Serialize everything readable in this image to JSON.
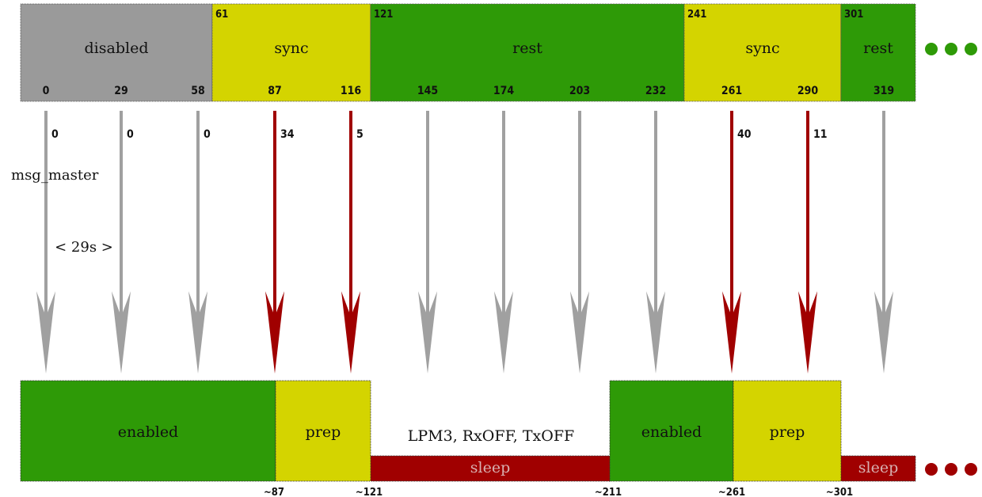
{
  "top_segments": [
    {
      "label": "disabled",
      "start_label": "",
      "color": "#9a9a9a"
    },
    {
      "label": "sync",
      "start_label": "61",
      "color": "#d4d400"
    },
    {
      "label": "rest",
      "start_label": "121",
      "color": "#2e9a07"
    },
    {
      "label": "sync",
      "start_label": "241",
      "color": "#d4d400"
    },
    {
      "label": "rest",
      "start_label": "301",
      "color": "#2e9a07"
    }
  ],
  "tick_labels": [
    "0",
    "29",
    "58",
    "87",
    "116",
    "145",
    "174",
    "203",
    "232",
    "261",
    "290",
    "319"
  ],
  "arrows": [
    {
      "value": "0",
      "color": "gray"
    },
    {
      "value": "0",
      "color": "gray"
    },
    {
      "value": "0",
      "color": "gray"
    },
    {
      "value": "34",
      "color": "red"
    },
    {
      "value": "5",
      "color": "red"
    },
    {
      "value": "",
      "color": "gray"
    },
    {
      "value": "",
      "color": "gray"
    },
    {
      "value": "",
      "color": "gray"
    },
    {
      "value": "",
      "color": "gray"
    },
    {
      "value": "40",
      "color": "red"
    },
    {
      "value": "11",
      "color": "red"
    },
    {
      "value": "",
      "color": "gray"
    }
  ],
  "annotations": {
    "msg_label": "msg_master",
    "interval_label": "< 29s >",
    "lpm_label": "LPM3, RxOFF, TxOFF"
  },
  "bottom_segments": [
    {
      "label": "enabled",
      "color": "#2e9a07",
      "level": "high"
    },
    {
      "label": "prep",
      "color": "#d4d400",
      "level": "high"
    },
    {
      "label": "sleep",
      "color": "#a00000",
      "level": "low"
    },
    {
      "label": "enabled",
      "color": "#2e9a07",
      "level": "high"
    },
    {
      "label": "prep",
      "color": "#d4d400",
      "level": "high"
    },
    {
      "label": "sleep",
      "color": "#a00000",
      "level": "low"
    }
  ],
  "bottom_markers": [
    "~87",
    "~121",
    "~211",
    "~261",
    "~301"
  ],
  "colors": {
    "arrow_gray": "#a0a0a0",
    "arrow_red": "#a00000",
    "dot_green": "#2e9a07",
    "dot_red": "#a00000"
  }
}
